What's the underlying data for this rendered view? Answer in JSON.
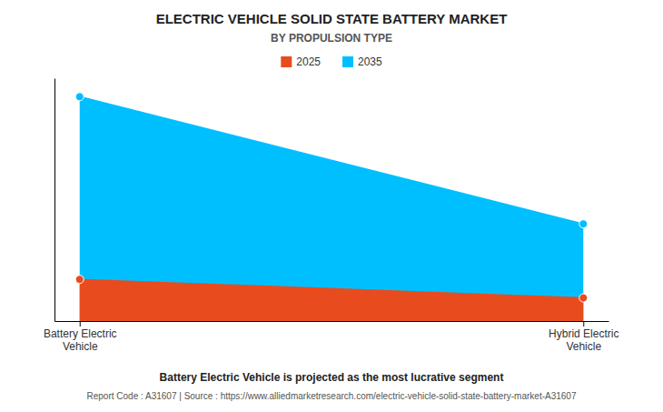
{
  "chart_data": {
    "type": "area",
    "title": "ELECTRIC VEHICLE SOLID STATE BATTERY MARKET",
    "subtitle": "BY PROPULSION TYPE",
    "categories": [
      "Battery Electric\nVehicle",
      "Hybrid Electric\nVehicle"
    ],
    "series": [
      {
        "name": "2025",
        "color": "#e84c1e",
        "values": [
          0.18,
          0.1
        ]
      },
      {
        "name": "2035",
        "color": "#00bfff",
        "values": [
          0.97,
          0.42
        ]
      }
    ],
    "ylim": [
      0,
      1.05
    ],
    "yticks": [],
    "grid": false,
    "tick_labels": "x",
    "legend": "top",
    "marker": "circle",
    "annotations": [
      "Battery Electric Vehicle is projected as the most lucrative segment",
      "Report Code : A31607  |  Source : https://www.alliedmarketresearch.com/electric-vehicle-solid-state-battery-market-A31607"
    ]
  }
}
